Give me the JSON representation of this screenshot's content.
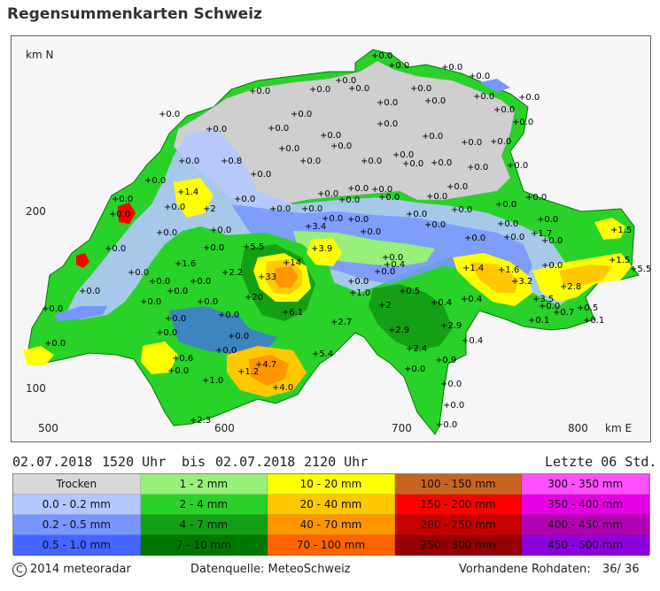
{
  "title": "Regensummenkarten Schweiz",
  "map": {
    "axis_y_unit": "km N",
    "axis_x_unit": "km E",
    "y_tick_200": "200",
    "y_tick_100": "100",
    "x_ticks": [
      "500",
      "600",
      "700",
      "800"
    ],
    "labels": [
      {
        "t": "+0.0",
        "x": 418,
        "y": 65
      },
      {
        "t": "+0.0",
        "x": 437,
        "y": 76
      },
      {
        "t": "+0.0",
        "x": 497,
        "y": 78
      },
      {
        "t": "+0.0",
        "x": 528,
        "y": 88
      },
      {
        "t": "+0.0",
        "x": 377,
        "y": 93
      },
      {
        "t": "+0.0",
        "x": 280,
        "y": 105
      },
      {
        "t": "+0.0",
        "x": 348,
        "y": 103
      },
      {
        "t": "+0.0",
        "x": 392,
        "y": 102
      },
      {
        "t": "+0.0",
        "x": 462,
        "y": 102
      },
      {
        "t": "+0.0",
        "x": 533,
        "y": 111
      },
      {
        "t": "+0.0",
        "x": 584,
        "y": 112
      },
      {
        "t": "+0.0",
        "x": 478,
        "y": 116
      },
      {
        "t": "+0.0",
        "x": 424,
        "y": 118
      },
      {
        "t": "+0.0",
        "x": 556,
        "y": 126
      },
      {
        "t": "+0.0",
        "x": 178,
        "y": 131
      },
      {
        "t": "+0.0",
        "x": 327,
        "y": 131
      },
      {
        "t": "+0.0",
        "x": 301,
        "y": 147
      },
      {
        "t": "+0.0",
        "x": 424,
        "y": 142
      },
      {
        "t": "+0.0",
        "x": 360,
        "y": 155
      },
      {
        "t": "+0.0",
        "x": 577,
        "y": 140
      },
      {
        "t": "+0.0",
        "x": 231,
        "y": 148
      },
      {
        "t": "+0.0",
        "x": 475,
        "y": 156
      },
      {
        "t": "+0.0",
        "x": 519,
        "y": 163
      },
      {
        "t": "+0.0",
        "x": 552,
        "y": 162
      },
      {
        "t": "+0.0",
        "x": 372,
        "y": 167
      },
      {
        "t": "+0.0",
        "x": 313,
        "y": 170
      },
      {
        "t": "+0.0",
        "x": 442,
        "y": 177
      },
      {
        "t": "+0.0",
        "x": 406,
        "y": 184
      },
      {
        "t": "+0.0",
        "x": 453,
        "y": 187
      },
      {
        "t": "+0.0",
        "x": 485,
        "y": 186
      },
      {
        "t": "+0.0",
        "x": 200,
        "y": 184
      },
      {
        "t": "+0.8",
        "x": 248,
        "y": 184
      },
      {
        "t": "+0.0",
        "x": 337,
        "y": 184
      },
      {
        "t": "+0.0",
        "x": 571,
        "y": 189
      },
      {
        "t": "+0.0",
        "x": 526,
        "y": 191
      },
      {
        "t": "+0.0",
        "x": 281,
        "y": 199
      },
      {
        "t": "+0.0",
        "x": 162,
        "y": 206
      },
      {
        "t": "+1.4",
        "x": 199,
        "y": 219
      },
      {
        "t": "+0.0",
        "x": 391,
        "y": 215
      },
      {
        "t": "+0.0",
        "x": 418,
        "y": 216
      },
      {
        "t": "+0.0",
        "x": 503,
        "y": 213
      },
      {
        "t": "+0.0",
        "x": 357,
        "y": 221
      },
      {
        "t": "+0.0",
        "x": 592,
        "y": 225
      },
      {
        "t": "+0.0",
        "x": 125,
        "y": 227
      },
      {
        "t": "+0.0",
        "x": 263,
        "y": 227
      },
      {
        "t": "+0.0",
        "x": 381,
        "y": 228
      },
      {
        "t": "+0.0",
        "x": 426,
        "y": 225
      },
      {
        "t": "+0.0",
        "x": 480,
        "y": 224
      },
      {
        "t": "+0.0",
        "x": 558,
        "y": 233
      },
      {
        "t": "+0.0",
        "x": 184,
        "y": 236
      },
      {
        "t": "+2",
        "x": 228,
        "y": 238
      },
      {
        "t": "+0.0",
        "x": 303,
        "y": 238
      },
      {
        "t": "+0.0",
        "x": 339,
        "y": 238
      },
      {
        "t": "+0.0",
        "x": 508,
        "y": 239
      },
      {
        "t": "+0.0",
        "x": 122,
        "y": 244
      },
      {
        "t": "+0.0",
        "x": 362,
        "y": 249
      },
      {
        "t": "+0.0",
        "x": 391,
        "y": 250
      },
      {
        "t": "+0.0",
        "x": 457,
        "y": 244
      },
      {
        "t": "+0.0",
        "x": 605,
        "y": 250
      },
      {
        "t": "+0.0",
        "x": 560,
        "y": 255
      },
      {
        "t": "+3.4",
        "x": 343,
        "y": 258
      },
      {
        "t": "+0.0",
        "x": 405,
        "y": 264
      },
      {
        "t": "+0.0",
        "x": 478,
        "y": 256
      },
      {
        "t": "+1.5",
        "x": 688,
        "y": 262
      },
      {
        "t": "+0.0",
        "x": 175,
        "y": 265
      },
      {
        "t": "+0.0",
        "x": 236,
        "y": 262
      },
      {
        "t": "+1.7",
        "x": 598,
        "y": 266
      },
      {
        "t": "+0.0",
        "x": 523,
        "y": 271
      },
      {
        "t": "+0.0",
        "x": 567,
        "y": 270
      },
      {
        "t": "+0.0",
        "x": 610,
        "y": 274
      },
      {
        "t": "+0.0",
        "x": 117,
        "y": 283
      },
      {
        "t": "+5.5",
        "x": 273,
        "y": 281
      },
      {
        "t": "+3.9",
        "x": 350,
        "y": 283
      },
      {
        "t": "+0.0",
        "x": 228,
        "y": 282
      },
      {
        "t": "+0.0",
        "x": 430,
        "y": 293
      },
      {
        "t": "+0.4",
        "x": 432,
        "y": 301
      },
      {
        "t": "+14",
        "x": 318,
        "y": 299
      },
      {
        "t": "+1.6",
        "x": 196,
        "y": 300
      },
      {
        "t": "+1.4",
        "x": 521,
        "y": 305
      },
      {
        "t": "+1.6",
        "x": 561,
        "y": 307
      },
      {
        "t": "+0.0",
        "x": 610,
        "y": 302
      },
      {
        "t": "+1.5",
        "x": 686,
        "y": 296
      },
      {
        "t": "+5.5",
        "x": 710,
        "y": 306
      },
      {
        "t": "+0.0",
        "x": 143,
        "y": 310
      },
      {
        "t": "+2.2",
        "x": 249,
        "y": 310
      },
      {
        "t": "+0.0",
        "x": 421,
        "y": 309
      },
      {
        "t": "+3.2",
        "x": 576,
        "y": 320
      },
      {
        "t": "+33",
        "x": 290,
        "y": 315
      },
      {
        "t": "+0.0",
        "x": 167,
        "y": 320
      },
      {
        "t": "+0.0",
        "x": 213,
        "y": 320
      },
      {
        "t": "+0.0",
        "x": 391,
        "y": 320
      },
      {
        "t": "+2.8",
        "x": 631,
        "y": 326
      },
      {
        "t": "+0.0",
        "x": 88,
        "y": 331
      },
      {
        "t": "+0.0",
        "x": 187,
        "y": 331
      },
      {
        "t": "+1.0",
        "x": 393,
        "y": 333
      },
      {
        "t": "+0.5",
        "x": 449,
        "y": 331
      },
      {
        "t": "+0.4",
        "x": 519,
        "y": 340
      },
      {
        "t": "+20",
        "x": 275,
        "y": 338
      },
      {
        "t": "+3.5",
        "x": 600,
        "y": 340
      },
      {
        "t": "+0.0",
        "x": 157,
        "y": 343
      },
      {
        "t": "+0.0",
        "x": 221,
        "y": 343
      },
      {
        "t": "+0.4",
        "x": 485,
        "y": 344
      },
      {
        "t": "+0.0",
        "x": 607,
        "y": 348
      },
      {
        "t": "+0.5",
        "x": 650,
        "y": 350
      },
      {
        "t": "+0.0",
        "x": 46,
        "y": 351
      },
      {
        "t": "+2",
        "x": 426,
        "y": 347
      },
      {
        "t": "+6.1",
        "x": 317,
        "y": 355
      },
      {
        "t": "+0.7",
        "x": 623,
        "y": 355
      },
      {
        "t": "+0.0",
        "x": 245,
        "y": 358
      },
      {
        "t": "+0.0",
        "x": 185,
        "y": 362
      },
      {
        "t": "+2.7",
        "x": 372,
        "y": 366
      },
      {
        "t": "+0.1",
        "x": 595,
        "y": 364
      },
      {
        "t": "+0.1",
        "x": 657,
        "y": 364
      },
      {
        "t": "+2.9",
        "x": 437,
        "y": 375
      },
      {
        "t": "+2.9",
        "x": 496,
        "y": 370
      },
      {
        "t": "+0.0",
        "x": 175,
        "y": 378
      },
      {
        "t": "+0.0",
        "x": 256,
        "y": 382
      },
      {
        "t": "+0.0",
        "x": 49,
        "y": 390
      },
      {
        "t": "+0.4",
        "x": 520,
        "y": 387
      },
      {
        "t": "+2.4",
        "x": 457,
        "y": 396
      },
      {
        "t": "+0.0",
        "x": 242,
        "y": 398
      },
      {
        "t": "+5.4",
        "x": 351,
        "y": 402
      },
      {
        "t": "+0.6",
        "x": 193,
        "y": 407
      },
      {
        "t": "+0.9",
        "x": 490,
        "y": 409
      },
      {
        "t": "+4.7",
        "x": 287,
        "y": 414
      },
      {
        "t": "+0.0",
        "x": 455,
        "y": 419
      },
      {
        "t": "+0.0",
        "x": 188,
        "y": 421
      },
      {
        "t": "+1.2",
        "x": 267,
        "y": 422
      },
      {
        "t": "+1.0",
        "x": 227,
        "y": 432
      },
      {
        "t": "+4.0",
        "x": 306,
        "y": 440
      },
      {
        "t": "+0.0",
        "x": 496,
        "y": 436
      },
      {
        "t": "+0.0",
        "x": 499,
        "y": 460
      },
      {
        "t": "+2.3",
        "x": 213,
        "y": 477
      },
      {
        "t": "+0.0",
        "x": 491,
        "y": 482
      }
    ]
  },
  "period": {
    "from_date": "02.07.2018",
    "from_time": "1520 Uhr",
    "bis": "bis",
    "to_date": "02.07.2018",
    "to_time": "2120 Uhr",
    "last": "Letzte 06 Std."
  },
  "legend": [
    {
      "label": "Trocken",
      "color": "#d8d8d8"
    },
    {
      "label": "1 - 2 mm",
      "color": "#96f07a"
    },
    {
      "label": "10 - 20 mm",
      "color": "#ffff00"
    },
    {
      "label": "100 - 150 mm",
      "color": "#c8641e"
    },
    {
      "label": "300 - 350 mm",
      "color": "#ff50ff"
    },
    {
      "label": "0.0 - 0.2 mm",
      "color": "#b4c8ff"
    },
    {
      "label": "2 - 4 mm",
      "color": "#28d228"
    },
    {
      "label": "20 - 40 mm",
      "color": "#ffc800"
    },
    {
      "label": "150 - 200 mm",
      "color": "#ff0000"
    },
    {
      "label": "350 - 400 mm",
      "color": "#e600e6"
    },
    {
      "label": "0.2 - 0.5 mm",
      "color": "#7896ff"
    },
    {
      "label": "4 - 7 mm",
      "color": "#14a014"
    },
    {
      "label": "40 - 70 mm",
      "color": "#ff9600"
    },
    {
      "label": "200 - 250 mm",
      "color": "#c80000"
    },
    {
      "label": "400 - 450 mm",
      "color": "#b400b4"
    },
    {
      "label": "0.5 - 1.0 mm",
      "color": "#4664ff"
    },
    {
      "label": "7 - 10 mm",
      "color": "#007800"
    },
    {
      "label": "70 - 100 mm",
      "color": "#ff6400"
    },
    {
      "label": "250 - 300 mm",
      "color": "#960000"
    },
    {
      "label": "450 - 500 mm",
      "color": "#8c00dc"
    }
  ],
  "footer": {
    "copyright": "2014  meteoradar",
    "source": "Datenquelle: MeteoSchweiz",
    "raw_label": "Vorhandene Rohdaten:",
    "raw_value": "36/ 36"
  }
}
